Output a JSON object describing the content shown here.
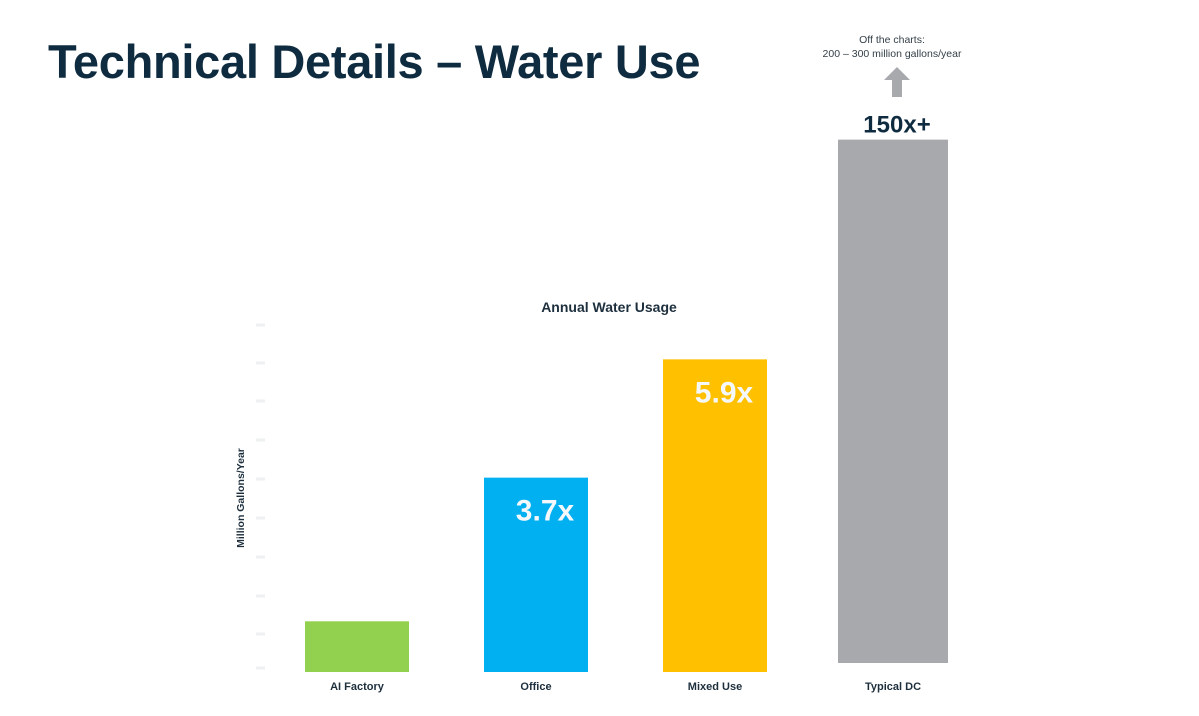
{
  "slide": {
    "title": "Technical Details – Water Use"
  },
  "off_chart_note": {
    "line1": "Off the charts:",
    "line2": "200 – 300 million gallons/year",
    "arrow_icon": "up-arrow-icon",
    "arrow_color": "#a7a9ac"
  },
  "chart_data": {
    "type": "bar",
    "title": "Annual Water Usage",
    "xlabel": "",
    "ylabel": "Million Gallons/Year",
    "ylim": [
      0,
      7
    ],
    "categories": [
      "AI Factory",
      "Office",
      "Mixed Use",
      "Typical DC"
    ],
    "values": [
      0.6,
      2.3,
      3.7,
      6.3
    ],
    "relative_labels": [
      "",
      "3.7x",
      "5.9x",
      "150x+"
    ],
    "colors": [
      "#92d050",
      "#00b0f0",
      "#ffc000",
      "#a7a9ac"
    ],
    "note": "Typical DC bar extends off the chart (150x+); axis tick labels not legible"
  }
}
